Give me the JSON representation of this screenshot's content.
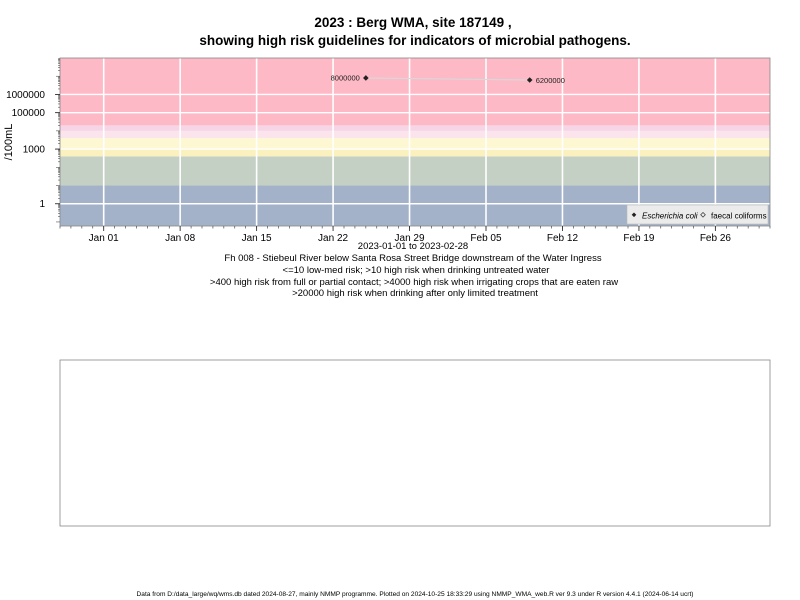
{
  "page": {
    "footer": "Data from D:/data_large/wq/wms.db dated 2024-08-27, mainly NMMP programme. Plotted on 2024-10-25 18:33:29 using NMMP_WMA_web.R ver 9.3 under R version 4.4.1 (2024-06-14 ucrt)",
    "background": "#ffffff"
  },
  "chart_data": [
    {
      "type": "scatter",
      "title": "2023 : Berg WMA, site 187149 ,",
      "subtitle": "showing high risk guidelines for indicators of microbial pathogens.",
      "xlabel": "2023-01-01 to 2023-02-28",
      "ylabel": "/100mL",
      "y_scale": "log",
      "x_type": "date",
      "xlim": [
        "2022-12-28",
        "2023-03-03"
      ],
      "ylim": [
        0.06,
        100000000.0
      ],
      "x_ticks": [
        {
          "date": "2023-01-01",
          "label": "Jan 01"
        },
        {
          "date": "2023-01-08",
          "label": "Jan 08"
        },
        {
          "date": "2023-01-15",
          "label": "Jan 15"
        },
        {
          "date": "2023-01-22",
          "label": "Jan 22"
        },
        {
          "date": "2023-01-29",
          "label": "Jan 29"
        },
        {
          "date": "2023-02-05",
          "label": "Feb 05"
        },
        {
          "date": "2023-02-12",
          "label": "Feb 12"
        },
        {
          "date": "2023-02-19",
          "label": "Feb 19"
        },
        {
          "date": "2023-02-26",
          "label": "Feb 26"
        }
      ],
      "y_ticks": [
        {
          "value": 1,
          "label": "1"
        },
        {
          "value": 1000,
          "label": "1000"
        },
        {
          "value": 100000,
          "label": "100000"
        },
        {
          "value": 1000000,
          "label": "1000000"
        }
      ],
      "grid": true,
      "risk_bands": [
        {
          "from": 0.06,
          "to": 10,
          "color": "#a3b2c9"
        },
        {
          "from": 10,
          "to": 400,
          "color": "#c5d0c5"
        },
        {
          "from": 400,
          "to": 1000,
          "color": "#fbf1be"
        },
        {
          "from": 1000,
          "to": 4000,
          "color": "#fdf8d2"
        },
        {
          "from": 4000,
          "to": 10000,
          "color": "#fce4ec"
        },
        {
          "from": 10000,
          "to": 20000,
          "color": "#f6d6e6"
        },
        {
          "from": 20000,
          "to": 100000000.0,
          "color": "#fdb9c5"
        }
      ],
      "series": [
        {
          "name": "Escherichia coli",
          "marker": "filled-diamond",
          "color": "#222222",
          "points": [
            {
              "x": "2023-01-25",
              "y": 8000000,
              "label": "8000000"
            },
            {
              "x": "2023-02-09",
              "y": 6200000,
              "label": "6200000"
            }
          ],
          "connect_color": "#d8d8d8"
        },
        {
          "name": "faecal coliforms",
          "marker": "open-diamond",
          "color": "#555555",
          "points": []
        }
      ],
      "legend_position": "bottom-right",
      "notes": [
        "Fh 008 - Stiebeul River below Santa Rosa Street Bridge downstream of the Water Ingress",
        "<=10 low-med risk; >10 high risk when drinking untreated water",
        ">400 high risk from full or partial contact; >4000 high risk when irrigating crops that are eaten raw",
        ">20000 high risk when drinking after only limited treatment"
      ]
    },
    {
      "type": "scatter",
      "title": "",
      "series": []
    }
  ]
}
